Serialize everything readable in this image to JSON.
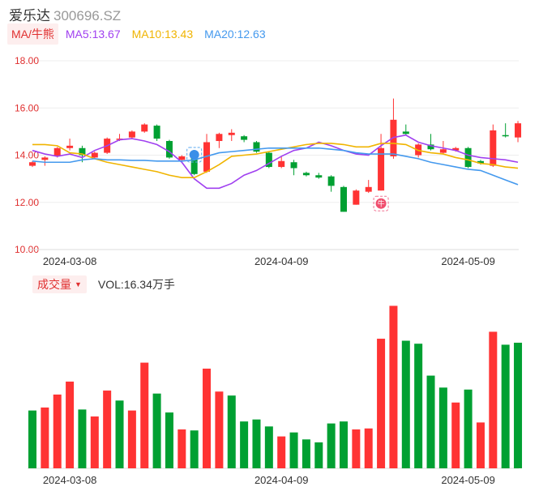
{
  "header": {
    "stock_name": "爱乐达",
    "stock_code": "300696.SZ"
  },
  "indicators": {
    "ma_button": "MA/牛熊",
    "ma5": "MA5:13.67",
    "ma10": "MA10:13.43",
    "ma20": "MA20:12.63"
  },
  "volume_panel": {
    "button": "成交量",
    "vol_text": "VOL:16.34万手"
  },
  "colors": {
    "up": "#ff3333",
    "down": "#00a032",
    "ma5": "#a040f0",
    "ma10": "#f0b400",
    "ma20": "#4499ee",
    "axis_label": "#e03030"
  },
  "chart_data": [
    {
      "type": "candlestick",
      "title": "",
      "ylim": [
        10,
        18
      ],
      "y_ticks": [
        "18.00",
        "16.00",
        "14.00",
        "12.00",
        "10.00"
      ],
      "x_tick_labels": [
        {
          "index": 3,
          "label": "2024-03-08"
        },
        {
          "index": 20,
          "label": "2024-04-09"
        },
        {
          "index": 35,
          "label": "2024-05-09"
        }
      ],
      "grid": true,
      "markers": [
        {
          "index": 13,
          "type": "bear-signal-icon"
        },
        {
          "index": 28,
          "type": "bull-signal-icon",
          "label": "牛"
        }
      ],
      "candles": [
        {
          "o": 13.55,
          "c": 13.7,
          "h": 13.75,
          "l": 13.5
        },
        {
          "o": 13.8,
          "c": 13.9,
          "h": 13.95,
          "l": 13.55
        },
        {
          "o": 13.95,
          "c": 14.3,
          "h": 14.35,
          "l": 13.9
        },
        {
          "o": 14.3,
          "c": 14.4,
          "h": 14.7,
          "l": 14.2
        },
        {
          "o": 14.3,
          "c": 14.0,
          "h": 14.4,
          "l": 13.7
        },
        {
          "o": 13.9,
          "c": 14.1,
          "h": 14.15,
          "l": 13.85
        },
        {
          "o": 14.1,
          "c": 14.7,
          "h": 14.75,
          "l": 14.05
        },
        {
          "o": 14.7,
          "c": 14.7,
          "h": 14.9,
          "l": 14.6
        },
        {
          "o": 14.75,
          "c": 15.0,
          "h": 15.05,
          "l": 14.7
        },
        {
          "o": 15.0,
          "c": 15.3,
          "h": 15.35,
          "l": 14.95
        },
        {
          "o": 15.25,
          "c": 14.7,
          "h": 15.3,
          "l": 14.6
        },
        {
          "o": 14.6,
          "c": 13.9,
          "h": 14.65,
          "l": 13.85
        },
        {
          "o": 13.8,
          "c": 13.95,
          "h": 14.0,
          "l": 13.75
        },
        {
          "o": 13.9,
          "c": 13.2,
          "h": 13.95,
          "l": 13.15
        },
        {
          "o": 13.3,
          "c": 14.55,
          "h": 14.9,
          "l": 13.25
        },
        {
          "o": 14.6,
          "c": 14.9,
          "h": 14.95,
          "l": 14.3
        },
        {
          "o": 14.85,
          "c": 14.95,
          "h": 15.1,
          "l": 14.6
        },
        {
          "o": 14.8,
          "c": 14.65,
          "h": 14.85,
          "l": 14.55
        },
        {
          "o": 14.55,
          "c": 14.15,
          "h": 14.6,
          "l": 14.1
        },
        {
          "o": 14.1,
          "c": 13.5,
          "h": 14.15,
          "l": 13.45
        },
        {
          "o": 13.5,
          "c": 13.75,
          "h": 13.95,
          "l": 13.45
        },
        {
          "o": 13.7,
          "c": 13.45,
          "h": 13.8,
          "l": 13.15
        },
        {
          "o": 13.25,
          "c": 13.15,
          "h": 13.3,
          "l": 13.1
        },
        {
          "o": 13.15,
          "c": 13.05,
          "h": 13.25,
          "l": 13.0
        },
        {
          "o": 13.1,
          "c": 12.7,
          "h": 13.15,
          "l": 12.45
        },
        {
          "o": 12.65,
          "c": 11.6,
          "h": 12.7,
          "l": 11.6
        },
        {
          "o": 11.9,
          "c": 12.5,
          "h": 12.55,
          "l": 11.9
        },
        {
          "o": 12.45,
          "c": 12.65,
          "h": 12.95,
          "l": 12.4
        },
        {
          "o": 12.5,
          "c": 14.3,
          "h": 14.9,
          "l": 12.5
        },
        {
          "o": 13.95,
          "c": 15.5,
          "h": 16.4,
          "l": 13.85
        },
        {
          "o": 15.0,
          "c": 14.9,
          "h": 15.3,
          "l": 14.85
        },
        {
          "o": 14.0,
          "c": 14.45,
          "h": 14.5,
          "l": 13.9
        },
        {
          "o": 14.45,
          "c": 14.25,
          "h": 14.9,
          "l": 14.2
        },
        {
          "o": 14.1,
          "c": 14.25,
          "h": 14.6,
          "l": 14.05
        },
        {
          "o": 14.2,
          "c": 14.3,
          "h": 14.35,
          "l": 14.15
        },
        {
          "o": 14.3,
          "c": 13.5,
          "h": 14.35,
          "l": 13.45
        },
        {
          "o": 13.75,
          "c": 13.65,
          "h": 13.8,
          "l": 13.6
        },
        {
          "o": 13.55,
          "c": 15.05,
          "h": 15.3,
          "l": 13.5
        },
        {
          "o": 14.85,
          "c": 14.8,
          "h": 15.35,
          "l": 14.75
        },
        {
          "o": 14.75,
          "c": 15.35,
          "h": 15.45,
          "l": 14.55
        }
      ],
      "series": [
        {
          "name": "MA5",
          "values": [
            14.2,
            14.05,
            13.95,
            14.05,
            13.9,
            14.2,
            14.4,
            14.65,
            14.7,
            14.6,
            14.45,
            14.15,
            13.7,
            13.0,
            12.6,
            12.6,
            12.8,
            13.15,
            13.35,
            13.65,
            13.95,
            14.2,
            14.3,
            14.55,
            14.4,
            14.2,
            14.05,
            14.0,
            14.4,
            14.75,
            14.85,
            14.55,
            14.4,
            14.3,
            14.2,
            14.0,
            13.9,
            13.85,
            13.8,
            13.7
          ]
        },
        {
          "name": "MA10",
          "values": [
            14.45,
            14.45,
            14.4,
            14.1,
            14.05,
            13.85,
            13.7,
            13.6,
            13.5,
            13.4,
            13.3,
            13.15,
            13.05,
            13.05,
            13.3,
            13.6,
            13.95,
            14.0,
            14.05,
            14.15,
            14.25,
            14.35,
            14.45,
            14.5,
            14.5,
            14.45,
            14.35,
            14.35,
            14.5,
            14.5,
            14.45,
            14.2,
            14.1,
            14.05,
            13.9,
            13.8,
            13.65,
            13.6,
            13.5,
            13.45
          ]
        },
        {
          "name": "MA20",
          "values": [
            13.75,
            13.7,
            13.7,
            13.7,
            13.8,
            13.85,
            13.8,
            13.8,
            13.78,
            13.78,
            13.75,
            13.75,
            13.75,
            13.8,
            13.95,
            14.1,
            14.15,
            14.2,
            14.25,
            14.3,
            14.3,
            14.3,
            14.3,
            14.3,
            14.25,
            14.2,
            14.1,
            14.05,
            14.05,
            14.05,
            13.95,
            13.85,
            13.7,
            13.6,
            13.5,
            13.4,
            13.35,
            13.15,
            12.95,
            12.75
          ]
        }
      ]
    },
    {
      "type": "bar",
      "title": "",
      "ylabel": "",
      "values": [
        5.8,
        6.1,
        7.4,
        8.7,
        5.9,
        5.2,
        7.8,
        6.8,
        5.8,
        10.6,
        7.5,
        5.6,
        3.9,
        3.8,
        10.0,
        7.7,
        7.3,
        4.7,
        4.9,
        4.2,
        3.2,
        3.6,
        2.9,
        2.6,
        4.5,
        4.7,
        3.9,
        4.0,
        13.0,
        16.3,
        12.8,
        12.5,
        9.3,
        8.1,
        6.6,
        7.9,
        4.6,
        13.7,
        12.4,
        12.6
      ],
      "directions": [
        "down",
        "up",
        "up",
        "up",
        "down",
        "up",
        "up",
        "down",
        "up",
        "up",
        "down",
        "down",
        "up",
        "down",
        "up",
        "up",
        "down",
        "down",
        "down",
        "down",
        "up",
        "down",
        "down",
        "down",
        "down",
        "down",
        "up",
        "up",
        "up",
        "up",
        "down",
        "down",
        "down",
        "down",
        "up",
        "down",
        "up",
        "up",
        "down",
        "down"
      ],
      "ylim": [
        0,
        16.5
      ],
      "x_tick_labels": [
        {
          "index": 3,
          "label": "2024-03-08"
        },
        {
          "index": 20,
          "label": "2024-04-09"
        },
        {
          "index": 35,
          "label": "2024-05-09"
        }
      ]
    }
  ]
}
